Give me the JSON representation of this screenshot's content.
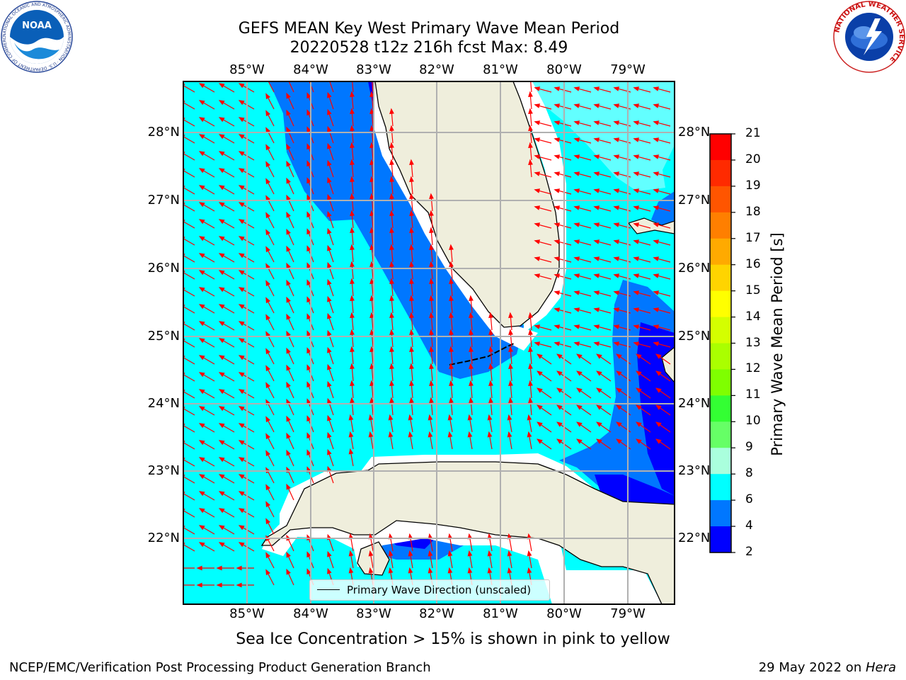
{
  "header": {
    "title_line1": "GEFS MEAN Key West Primary Wave Mean Period",
    "title_line2": "20220528 t12z 216h fcst   Max: 8.49"
  },
  "map": {
    "lon_ticks": [
      "85°W",
      "84°W",
      "83°W",
      "82°W",
      "81°W",
      "80°W",
      "79°W"
    ],
    "lat_ticks": [
      "28°N",
      "27°N",
      "26°N",
      "25°N",
      "24°N",
      "23°N",
      "22°N"
    ],
    "colors": {
      "land": "#efeedc",
      "blue_2_4": "#0000ff",
      "blue_4_6": "#0077ff",
      "cyan_6_8": "#00ffff",
      "cyan_8_9": "#62ffff",
      "arrow": "#ff0000",
      "grid": "#b0b0b0"
    },
    "legend_label": "Primary Wave Direction (unscaled)"
  },
  "colorbar": {
    "label": "Primary Wave Mean Period [s]",
    "ticks": [
      "21",
      "20",
      "19",
      "18",
      "17",
      "16",
      "15",
      "14",
      "13",
      "12",
      "11",
      "10",
      "9",
      "8",
      "6",
      "4",
      "2"
    ],
    "band_colors": [
      "#ff0000",
      "#ff2a00",
      "#ff5500",
      "#ff7f00",
      "#ffaa00",
      "#ffd400",
      "#ffff00",
      "#d4ff00",
      "#aaff00",
      "#7fff00",
      "#33ff33",
      "#66ff66",
      "#aaffdd",
      "#62ffff",
      "#00ffff",
      "#0077ff",
      "#0000ff"
    ]
  },
  "note": "Sea Ice Concentration > 15% is shown in pink to yellow",
  "footer": {
    "left": "NCEP/EMC/Verification Post Processing Product Generation Branch",
    "right_prefix": "29 May 2022 on ",
    "right_host": "Hera"
  },
  "logos": {
    "noaa_text": "NOAA",
    "noaa_ring": "NATIONAL OCEANIC AND ATMOSPHERIC ADMINISTRATION · U.S. DEPARTMENT OF COMMERCE",
    "nws_ring": "NATIONAL WEATHER SERVICE"
  }
}
